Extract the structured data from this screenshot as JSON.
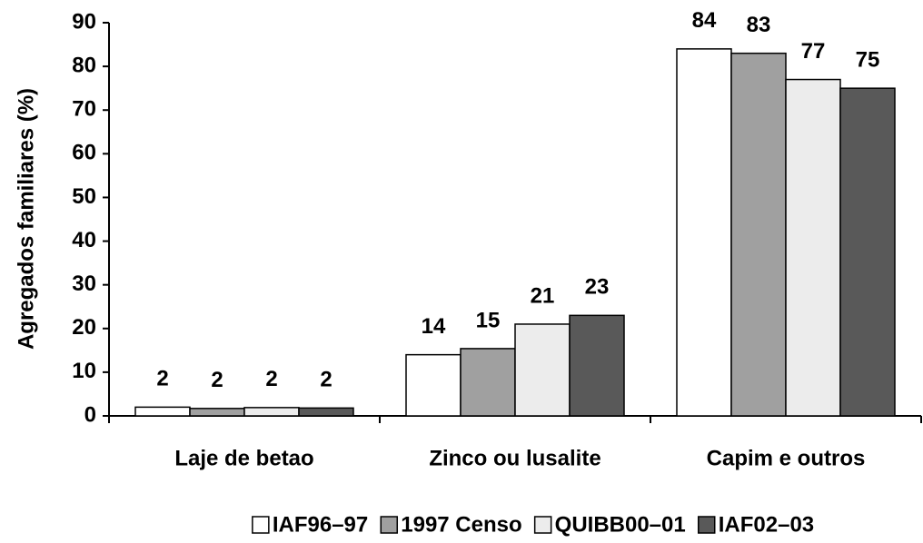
{
  "chart_data": {
    "type": "bar",
    "y_label": "Agregados familiares (%)",
    "categories": [
      "Laje de betao",
      "Zinco ou lusalite",
      "Capim e outros"
    ],
    "series": [
      {
        "name": "IAF96–97",
        "color": "#ffffff",
        "values": [
          2,
          14,
          84
        ],
        "value_labels": [
          "2",
          "14",
          "84"
        ]
      },
      {
        "name": "1997 Censo",
        "color": "#a0a0a0",
        "values": [
          1.7,
          15.4,
          83
        ],
        "value_labels": [
          "2",
          "15",
          "83"
        ]
      },
      {
        "name": "QUIBB00–01",
        "color": "#ececec",
        "values": [
          1.9,
          21,
          77
        ],
        "value_labels": [
          "2",
          "21",
          "77"
        ]
      },
      {
        "name": "IAF02–03",
        "color": "#595959",
        "values": [
          1.8,
          23,
          75
        ],
        "value_labels": [
          "2",
          "23",
          "75"
        ]
      }
    ],
    "ylim": [
      0,
      90
    ],
    "yticks": [
      0,
      10,
      20,
      30,
      40,
      50,
      60,
      70,
      80,
      90
    ]
  }
}
